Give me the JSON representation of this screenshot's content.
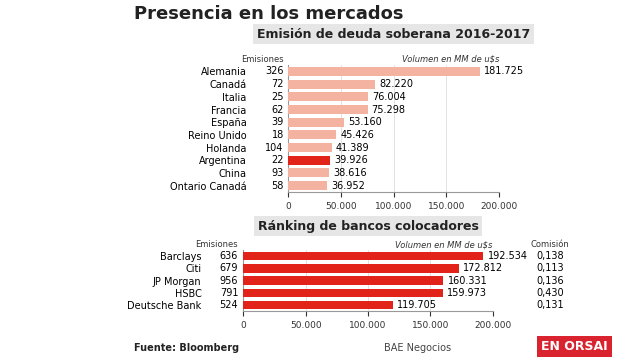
{
  "title": "Presencia en los mercados",
  "source": "Fuente: Bloomberg",
  "credit": "BAE Negocios",
  "logo": "EN ORSAI",
  "chart_data": [
    {
      "type": "bar",
      "orientation": "horizontal",
      "title": "Emisión de deuda soberana 2016-2017",
      "xlabel": "Volumen en MM de u$s",
      "categories": [
        "Alemania",
        "Canadá",
        "Italia",
        "Francia",
        "España",
        "Reino Unido",
        "Holanda",
        "Argentina",
        "China",
        "Ontario Canadá"
      ],
      "values": [
        181725,
        82220,
        76004,
        75298,
        53160,
        45426,
        41389,
        39926,
        38616,
        36952
      ],
      "value_labels": [
        "181.725",
        "82.220",
        "76.004",
        "75.298",
        "53.160",
        "45.426",
        "41.389",
        "39.926",
        "38.616",
        "36.952"
      ],
      "data_labels": true,
      "colors": [
        "#f4b3a0",
        "#f4b3a0",
        "#f4b3a0",
        "#f4b3a0",
        "#f4b3a0",
        "#f4b3a0",
        "#f4b3a0",
        "#e2231a",
        "#f4b3a0",
        "#f4b3a0"
      ],
      "columns": [
        {
          "name": "Emisiones",
          "values": [
            326,
            72,
            25,
            62,
            39,
            18,
            104,
            22,
            93,
            58
          ]
        }
      ],
      "xlim": [
        0,
        200000
      ],
      "xticks": [
        0,
        {
          "value": 50000,
          "label": "50.000"
        },
        {
          "value": 100000,
          "label": "100.000"
        },
        {
          "value": 150000,
          "label": "150.000"
        },
        {
          "value": 200000,
          "label": "200.000"
        }
      ],
      "grid": true
    },
    {
      "type": "bar",
      "orientation": "horizontal",
      "title": "Ránking de bancos colocadores",
      "xlabel": "Volumen en MM de u$s",
      "categories": [
        "Barclays",
        "Citi",
        "JP Morgan",
        "HSBC",
        "Deutsche Bank"
      ],
      "values": [
        192534,
        172812,
        160331,
        159973,
        119705
      ],
      "value_labels": [
        "192.534",
        "172.812",
        "160.331",
        "159.973",
        "119.705"
      ],
      "data_labels": true,
      "color": "#e2231a",
      "columns": [
        {
          "name": "Emisiones",
          "values": [
            636,
            679,
            956,
            791,
            524
          ]
        },
        {
          "name": "Comisión",
          "values": [
            0.138,
            0.113,
            0.136,
            0.43,
            0.131
          ],
          "value_labels": [
            "0,138",
            "0,113",
            "0,136",
            "0,430",
            "0,131"
          ]
        }
      ],
      "xlim": [
        0,
        200000
      ],
      "xticks": [
        0,
        {
          "value": 50000,
          "label": "50.000"
        },
        {
          "value": 100000,
          "label": "100.000"
        },
        {
          "value": 150000,
          "label": "150.000"
        },
        {
          "value": 200000,
          "label": "200.000"
        }
      ],
      "grid": true
    }
  ]
}
